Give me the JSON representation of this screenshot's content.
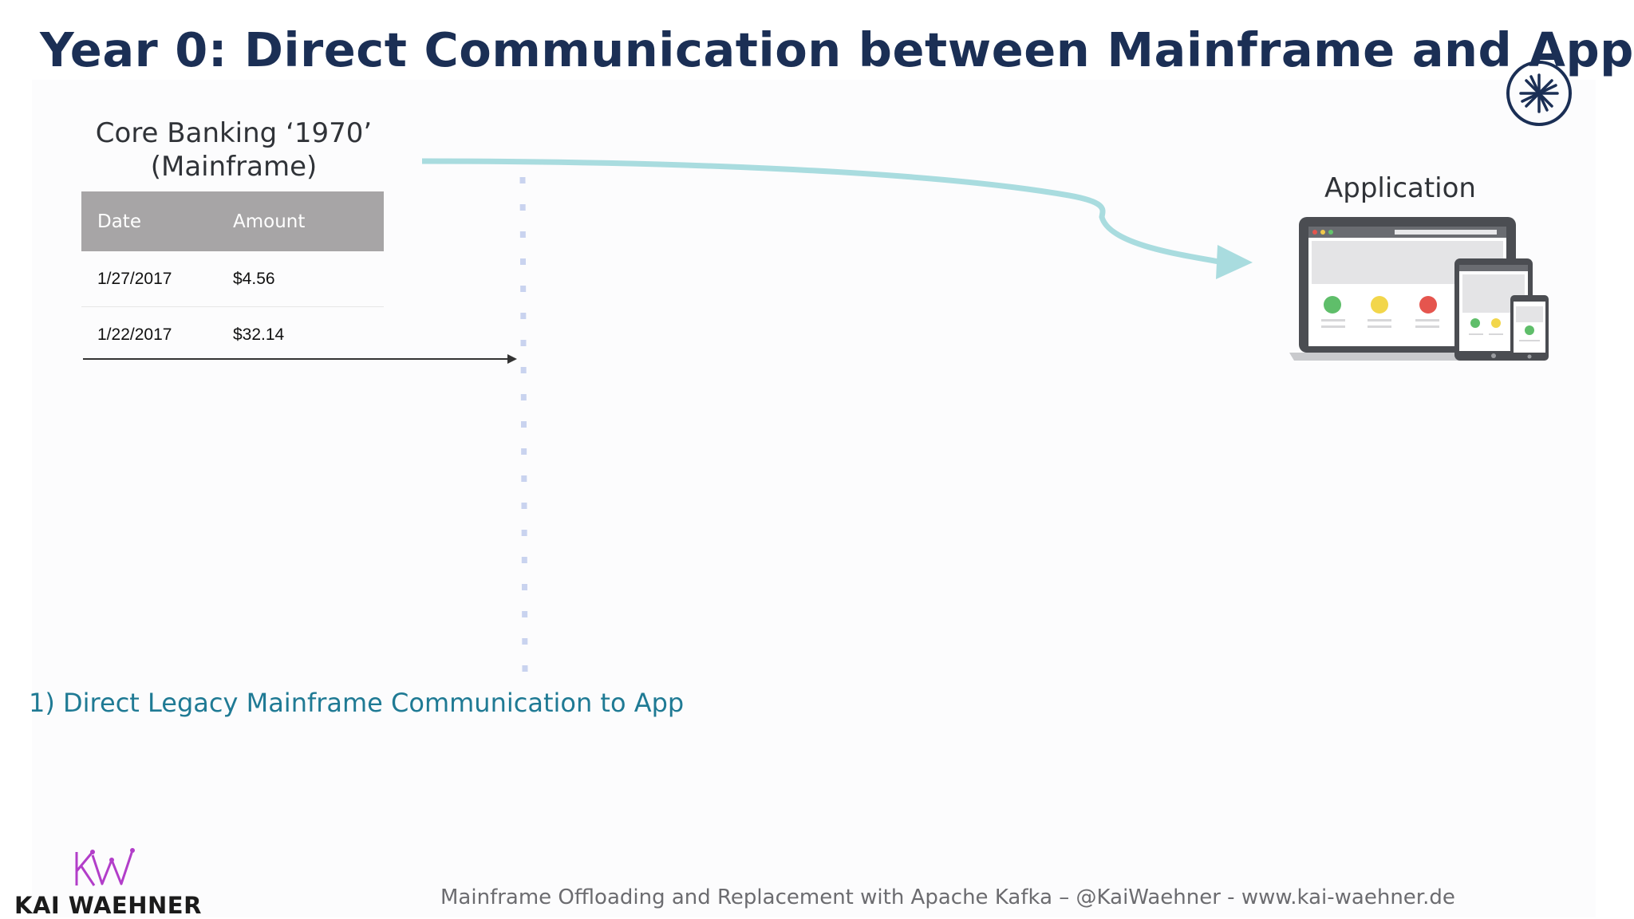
{
  "slide": {
    "title": "Year 0: Direct Communication between Mainframe and App",
    "brand_icon": "starburst-logo-icon",
    "core_banking": {
      "title_line1": "Core Banking ‘1970’",
      "title_line2": "(Mainframe)"
    },
    "table": {
      "headers": [
        "Date",
        "Amount"
      ],
      "rows": [
        [
          "1/27/2017",
          "$4.56"
        ],
        [
          "1/22/2017",
          "$32.14"
        ]
      ]
    },
    "application": {
      "label": "Application",
      "icon": "devices-icon"
    },
    "note": "1) Direct Legacy Mainframe Communication to App",
    "author": {
      "monogram": "KW",
      "name": "KAI WAEHNER"
    },
    "footer": "Mainframe Offloading and Replacement with Apache Kafka – @KaiWaehner - www.kai-waehner.de",
    "colors": {
      "title": "#1b2f55",
      "flow_arrow": "#a9dcdf",
      "note": "#1f7a94",
      "table_header": "#a7a5a6",
      "dotted_line": "#c9d3ef",
      "logo_purple": "#b23ec9"
    }
  }
}
